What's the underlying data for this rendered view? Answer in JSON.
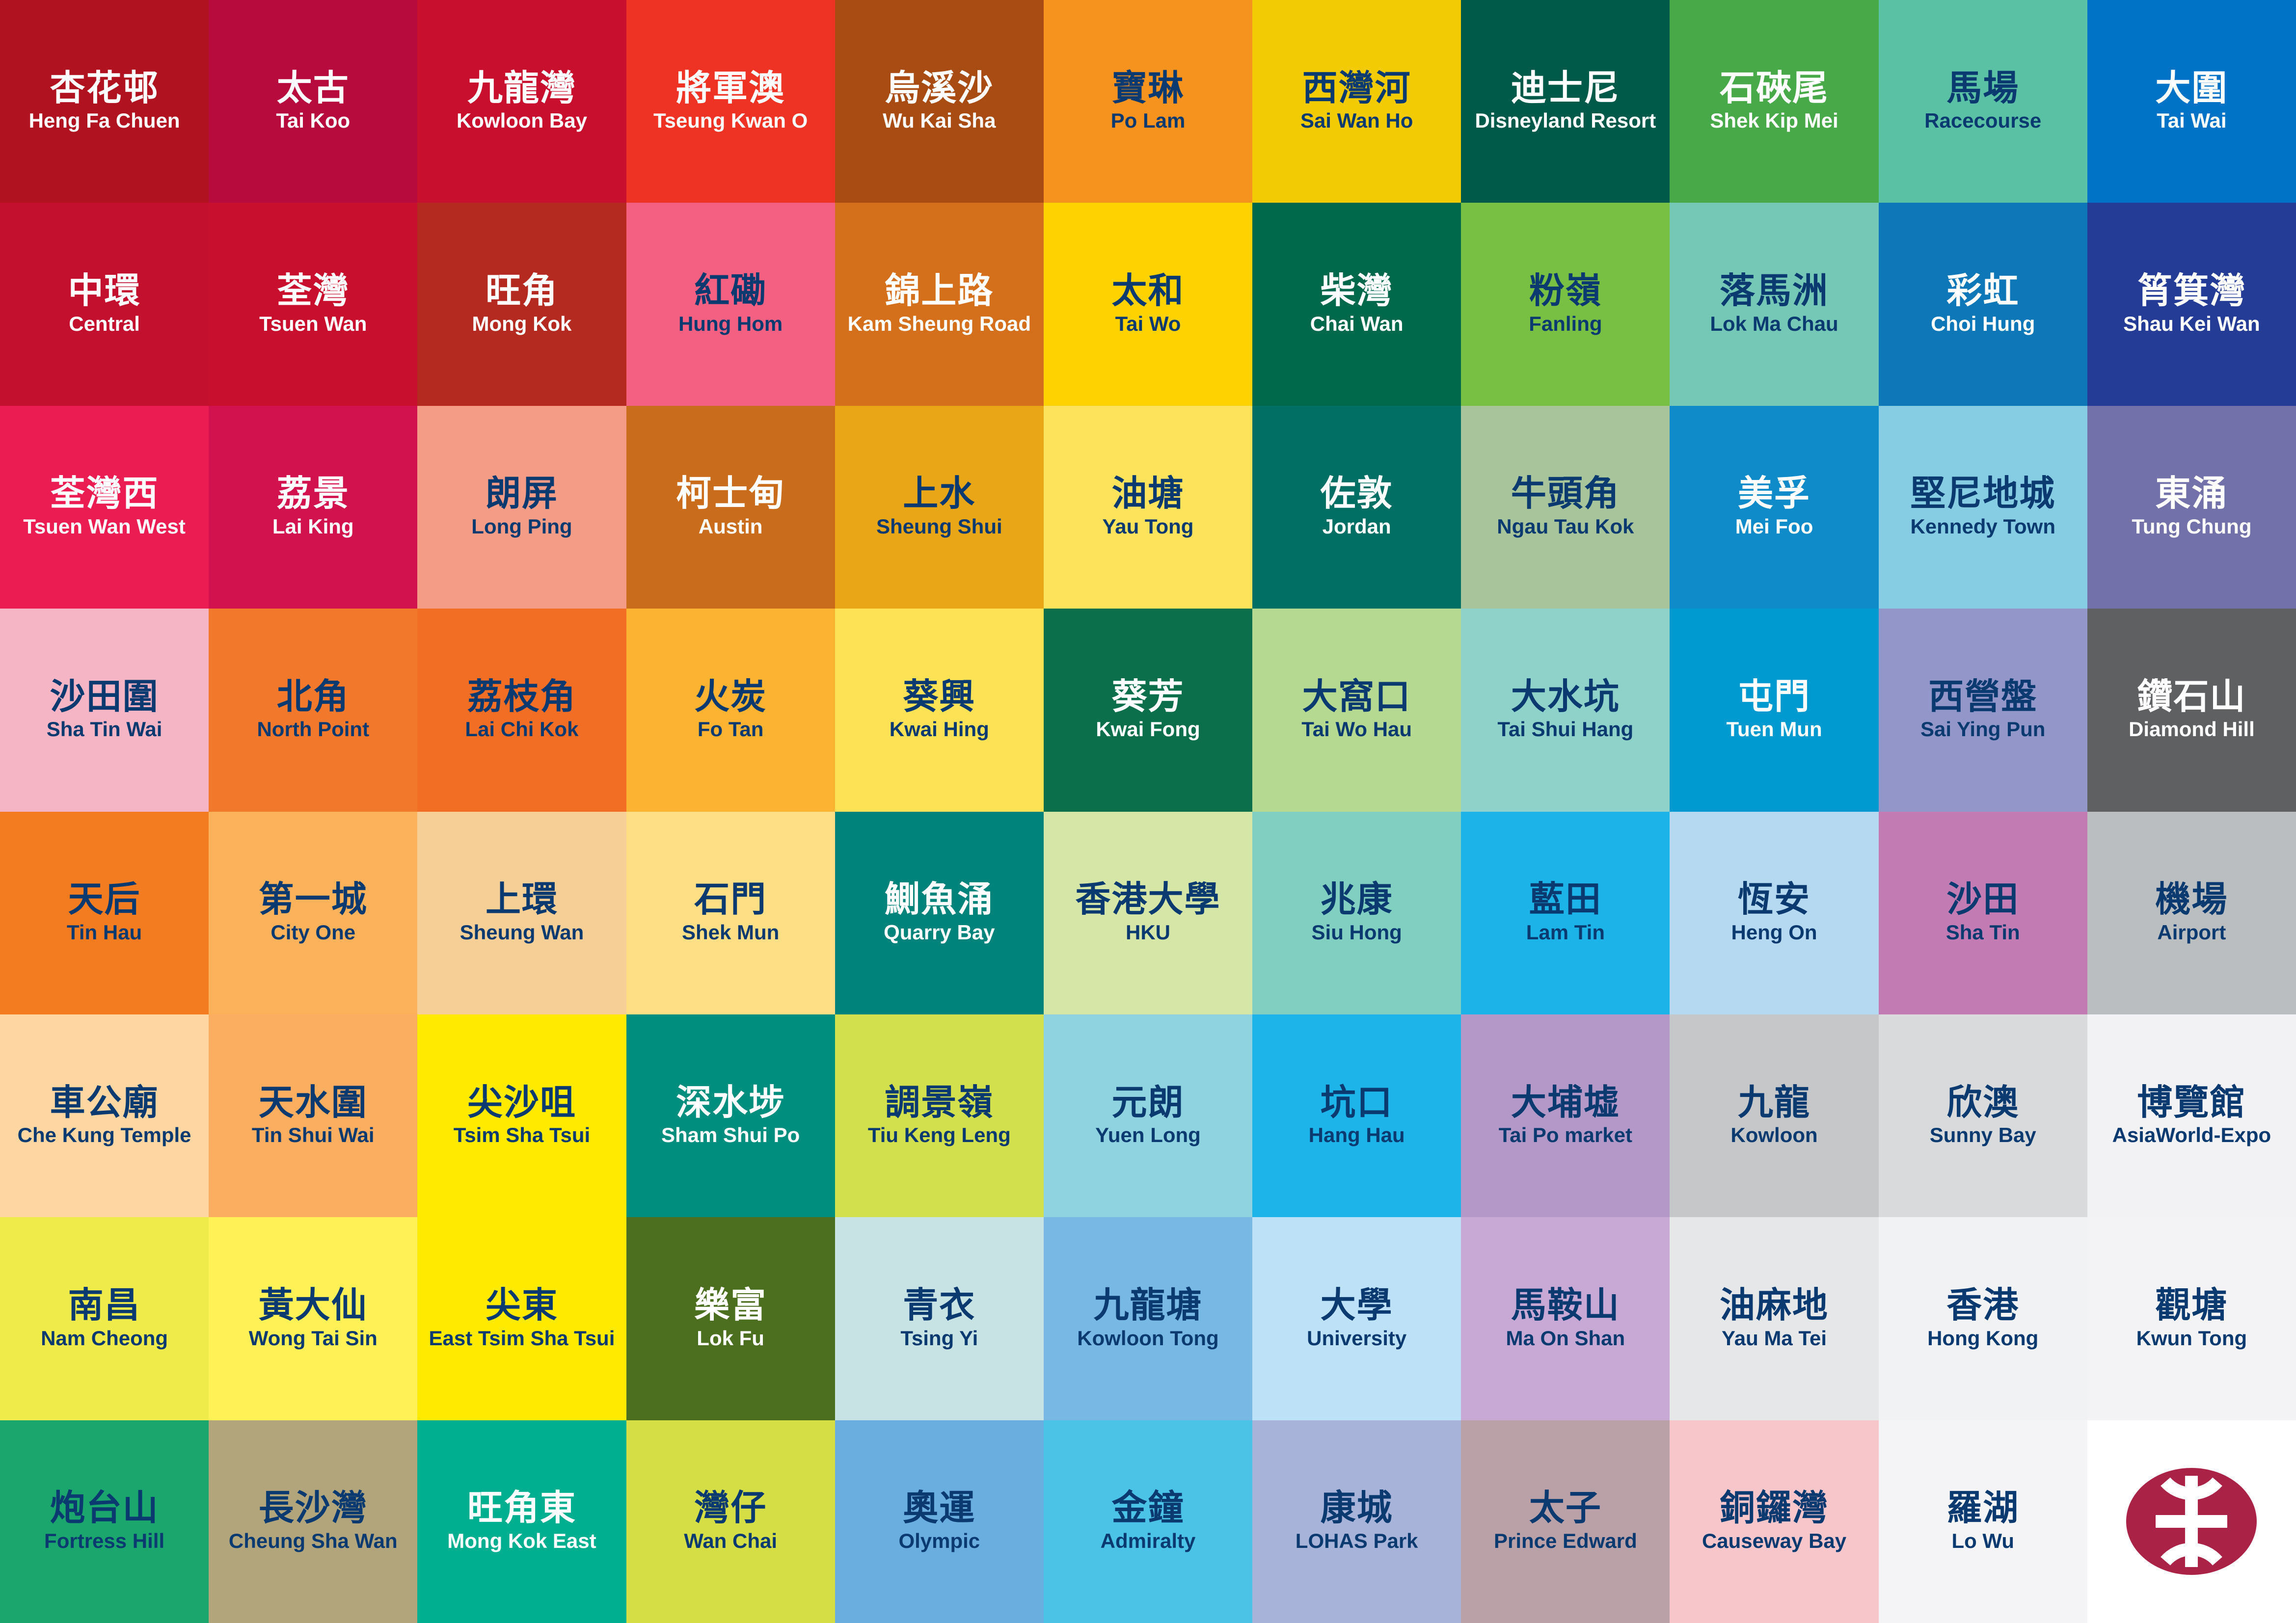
{
  "colors": {
    "light_text": "#ffffff",
    "dark_text": "#0b3a70",
    "logo": "#ab2247"
  },
  "logo_icon": "mtr-logo",
  "stations": [
    {
      "zh": "杏花邨",
      "en": "Heng Fa Chuen",
      "bg": "#b0121f",
      "fg": "light"
    },
    {
      "zh": "太古",
      "en": "Tai Koo",
      "bg": "#b70b3e",
      "fg": "light"
    },
    {
      "zh": "九龍灣",
      "en": "Kowloon Bay",
      "bg": "#c8102e",
      "fg": "light"
    },
    {
      "zh": "將軍澳",
      "en": "Tseung Kwan O",
      "bg": "#ee3324",
      "fg": "light"
    },
    {
      "zh": "烏溪沙",
      "en": "Wu Kai Sha",
      "bg": "#a84c14",
      "fg": "light"
    },
    {
      "zh": "寶琳",
      "en": "Po Lam",
      "bg": "#f6921e",
      "fg": "dark"
    },
    {
      "zh": "西灣河",
      "en": "Sai Wan Ho",
      "bg": "#f2cb05",
      "fg": "dark"
    },
    {
      "zh": "迪士尼",
      "en": "Disneyland Resort",
      "bg": "#005a4a",
      "fg": "light"
    },
    {
      "zh": "石硤尾",
      "en": "Shek Kip Mei",
      "bg": "#48a949",
      "fg": "light"
    },
    {
      "zh": "馬場",
      "en": "Racecourse",
      "bg": "#5bc1a4",
      "fg": "dark"
    },
    {
      "zh": "大圍",
      "en": "Tai Wai",
      "bg": "#0073c7",
      "fg": "light"
    },
    {
      "zh": "中環",
      "en": "Central",
      "bg": "#c4102f",
      "fg": "light"
    },
    {
      "zh": "荃灣",
      "en": "Tsuen Wan",
      "bg": "#c8102e",
      "fg": "light"
    },
    {
      "zh": "旺角",
      "en": "Mong Kok",
      "bg": "#b42920",
      "fg": "light"
    },
    {
      "zh": "紅磡",
      "en": "Hung Hom",
      "bg": "#f46081",
      "fg": "dark"
    },
    {
      "zh": "錦上路",
      "en": "Kam Sheung Road",
      "bg": "#d4701c",
      "fg": "light"
    },
    {
      "zh": "太和",
      "en": "Tai Wo",
      "bg": "#fdd200",
      "fg": "dark"
    },
    {
      "zh": "柴灣",
      "en": "Chai Wan",
      "bg": "#00694c",
      "fg": "light"
    },
    {
      "zh": "粉嶺",
      "en": "Fanling",
      "bg": "#78c043",
      "fg": "dark"
    },
    {
      "zh": "落馬洲",
      "en": "Lok Ma Chau",
      "bg": "#76c8b6",
      "fg": "dark"
    },
    {
      "zh": "彩虹",
      "en": "Choi Hung",
      "bg": "#0e77b7",
      "fg": "light"
    },
    {
      "zh": "筲箕灣",
      "en": "Shau Kei Wan",
      "bg": "#253c96",
      "fg": "light"
    },
    {
      "zh": "荃灣西",
      "en": "Tsuen Wan West",
      "bg": "#eb1c52",
      "fg": "light"
    },
    {
      "zh": "荔景",
      "en": "Lai King",
      "bg": "#d2124e",
      "fg": "light"
    },
    {
      "zh": "朗屏",
      "en": "Long Ping",
      "bg": "#f49c86",
      "fg": "dark"
    },
    {
      "zh": "柯士甸",
      "en": "Austin",
      "bg": "#c96c1b",
      "fg": "light"
    },
    {
      "zh": "上水",
      "en": "Sheung Shui",
      "bg": "#e9a617",
      "fg": "dark"
    },
    {
      "zh": "油塘",
      "en": "Yau Tong",
      "bg": "#fde25c",
      "fg": "dark"
    },
    {
      "zh": "佐敦",
      "en": "Jordan",
      "bg": "#016f64",
      "fg": "light"
    },
    {
      "zh": "牛頭角",
      "en": "Ngau Tau Kok",
      "bg": "#a7c49a",
      "fg": "dark"
    },
    {
      "zh": "美孚",
      "en": "Mei Foo",
      "bg": "#0f8bc9",
      "fg": "light"
    },
    {
      "zh": "堅尼地城",
      "en": "Kennedy Town",
      "bg": "#86cde3",
      "fg": "dark"
    },
    {
      "zh": "東涌",
      "en": "Tung Chung",
      "bg": "#7271aa",
      "fg": "light"
    },
    {
      "zh": "沙田圍",
      "en": "Sha Tin Wai",
      "bg": "#f5b5c5",
      "fg": "dark"
    },
    {
      "zh": "北角",
      "en": "North Point",
      "bg": "#f2792b",
      "fg": "dark"
    },
    {
      "zh": "荔枝角",
      "en": "Lai Chi Kok",
      "bg": "#f26e25",
      "fg": "dark"
    },
    {
      "zh": "火炭",
      "en": "Fo Tan",
      "bg": "#fcb332",
      "fg": "dark"
    },
    {
      "zh": "葵興",
      "en": "Kwai Hing",
      "bg": "#fde256",
      "fg": "dark"
    },
    {
      "zh": "葵芳",
      "en": "Kwai Fong",
      "bg": "#0c6f4c",
      "fg": "light"
    },
    {
      "zh": "大窩口",
      "en": "Tai Wo Hau",
      "bg": "#b5d990",
      "fg": "dark"
    },
    {
      "zh": "大水坑",
      "en": "Tai Shui Hang",
      "bg": "#8fd2c9",
      "fg": "dark"
    },
    {
      "zh": "屯門",
      "en": "Tuen Mun",
      "bg": "#0099d0",
      "fg": "light"
    },
    {
      "zh": "西營盤",
      "en": "Sai Ying Pun",
      "bg": "#9396c9",
      "fg": "dark"
    },
    {
      "zh": "鑽石山",
      "en": "Diamond Hill",
      "bg": "#5f6062",
      "fg": "light"
    },
    {
      "zh": "天后",
      "en": "Tin Hau",
      "bg": "#f47c20",
      "fg": "dark"
    },
    {
      "zh": "第一城",
      "en": "City One",
      "bg": "#fbb25a",
      "fg": "dark"
    },
    {
      "zh": "上環",
      "en": "Sheung Wan",
      "bg": "#f6cf96",
      "fg": "dark"
    },
    {
      "zh": "石門",
      "en": "Shek Mun",
      "bg": "#fedf85",
      "fg": "dark"
    },
    {
      "zh": "鰂魚涌",
      "en": "Quarry Bay",
      "bg": "#00837a",
      "fg": "light"
    },
    {
      "zh": "香港大學",
      "en": "HKU",
      "bg": "#d5e6a7",
      "fg": "dark"
    },
    {
      "zh": "兆康",
      "en": "Siu Hong",
      "bg": "#80cfc0",
      "fg": "dark"
    },
    {
      "zh": "藍田",
      "en": "Lam Tin",
      "bg": "#1cb4e8",
      "fg": "dark"
    },
    {
      "zh": "恆安",
      "en": "Heng On",
      "bg": "#b6d9f2",
      "fg": "dark"
    },
    {
      "zh": "沙田",
      "en": "Sha Tin",
      "bg": "#c37cb3",
      "fg": "dark"
    },
    {
      "zh": "機場",
      "en": "Airport",
      "bg": "#bbbec0",
      "fg": "dark"
    },
    {
      "zh": "車公廟",
      "en": "Che Kung Temple",
      "bg": "#fdd6a1",
      "fg": "dark"
    },
    {
      "zh": "天水圍",
      "en": "Tin Shui Wai",
      "bg": "#fbad60",
      "fg": "dark"
    },
    {
      "zh": "尖沙咀",
      "en": "Tsim Sha Tsui",
      "bg": "#ffea00",
      "fg": "dark"
    },
    {
      "zh": "深水埗",
      "en": "Sham Shui Po",
      "bg": "#008e7e",
      "fg": "light"
    },
    {
      "zh": "調景嶺",
      "en": "Tiu Keng Leng",
      "bg": "#d2e04d",
      "fg": "dark"
    },
    {
      "zh": "元朗",
      "en": "Yuen Long",
      "bg": "#8ed3df",
      "fg": "dark"
    },
    {
      "zh": "坑口",
      "en": "Hang Hau",
      "bg": "#1db5e9",
      "fg": "dark"
    },
    {
      "zh": "大埔墟",
      "en": "Tai Po market",
      "bg": "#b398c8",
      "fg": "dark"
    },
    {
      "zh": "九龍",
      "en": "Kowloon",
      "bg": "#c6c7c9",
      "fg": "dark"
    },
    {
      "zh": "欣澳",
      "en": "Sunny Bay",
      "bg": "#d8dadc",
      "fg": "dark"
    },
    {
      "zh": "博覽館",
      "en": "AsiaWorld-Expo",
      "bg": "#f2f2f4",
      "fg": "dark"
    },
    {
      "zh": "南昌",
      "en": "Nam Cheong",
      "bg": "#eeeb4a",
      "fg": "dark"
    },
    {
      "zh": "黃大仙",
      "en": "Wong Tai Sin",
      "bg": "#fff156",
      "fg": "dark"
    },
    {
      "zh": "尖東",
      "en": "East Tsim Sha Tsui",
      "bg": "#ffea00",
      "fg": "dark"
    },
    {
      "zh": "樂富",
      "en": "Lok Fu",
      "bg": "#4c6f1f",
      "fg": "light"
    },
    {
      "zh": "青衣",
      "en": "Tsing Yi",
      "bg": "#c8e3e3",
      "fg": "dark"
    },
    {
      "zh": "九龍塘",
      "en": "Kowloon Tong",
      "bg": "#78b8e4",
      "fg": "dark"
    },
    {
      "zh": "大學",
      "en": "University",
      "bg": "#bde2f7",
      "fg": "dark"
    },
    {
      "zh": "馬鞍山",
      "en": "Ma On Shan",
      "bg": "#c8a9d6",
      "fg": "dark"
    },
    {
      "zh": "油麻地",
      "en": "Yau Ma Tei",
      "bg": "#e6e7e9",
      "fg": "dark"
    },
    {
      "zh": "香港",
      "en": "Hong Kong",
      "bg": "#f1f2f4",
      "fg": "dark"
    },
    {
      "zh": "觀塘",
      "en": "Kwun Tong",
      "bg": "#f3f3f5",
      "fg": "dark"
    },
    {
      "zh": "炮台山",
      "en": "Fortress Hill",
      "bg": "#1aa66c",
      "fg": "dark"
    },
    {
      "zh": "長沙灣",
      "en": "Cheung Sha Wan",
      "bg": "#b2a57c",
      "fg": "dark"
    },
    {
      "zh": "旺角東",
      "en": "Mong Kok East",
      "bg": "#00af8f",
      "fg": "light"
    },
    {
      "zh": "灣仔",
      "en": "Wan Chai",
      "bg": "#d5df45",
      "fg": "dark"
    },
    {
      "zh": "奧運",
      "en": "Olympic",
      "bg": "#6aaee0",
      "fg": "dark"
    },
    {
      "zh": "金鐘",
      "en": "Admiralty",
      "bg": "#4bc3e6",
      "fg": "dark"
    },
    {
      "zh": "康城",
      "en": "LOHAS Park",
      "bg": "#a7b3d8",
      "fg": "dark"
    },
    {
      "zh": "太子",
      "en": "Prince Edward",
      "bg": "#b9a1a7",
      "fg": "dark"
    },
    {
      "zh": "銅鑼灣",
      "en": "Causeway Bay",
      "bg": "#f6c6cb",
      "fg": "dark"
    },
    {
      "zh": "羅湖",
      "en": "Lo Wu",
      "bg": "#f4f4f6",
      "fg": "dark"
    }
  ]
}
